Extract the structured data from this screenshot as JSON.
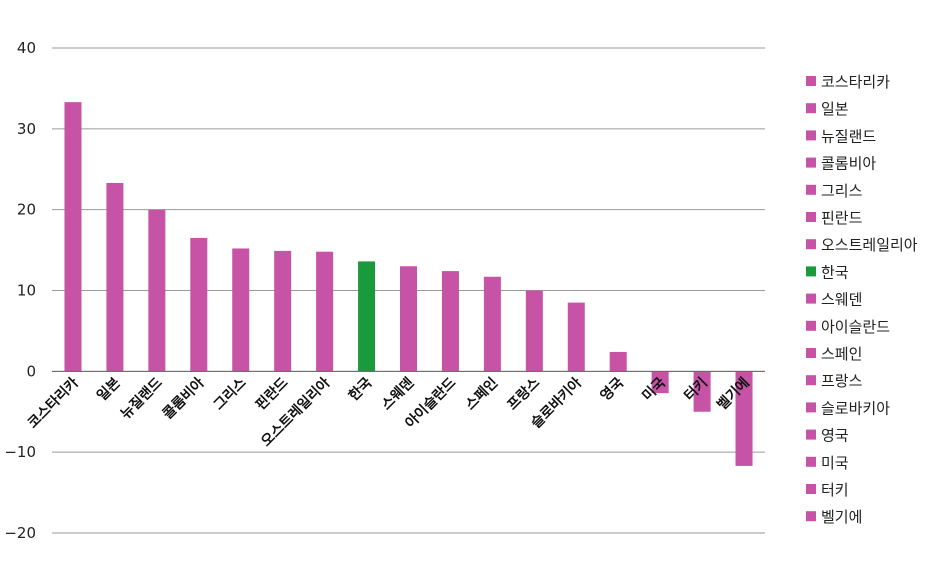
{
  "chart_data": {
    "type": "bar",
    "categories": [
      "코스타리카",
      "일본",
      "뉴질랜드",
      "콜롬비아",
      "그리스",
      "핀란드",
      "오스트레일리아",
      "한국",
      "스웨덴",
      "아이슬란드",
      "스페인",
      "프랑스",
      "슬로바키아",
      "영국",
      "미국",
      "터키",
      "벨기에"
    ],
    "values": [
      33.3,
      23.3,
      20.0,
      16.5,
      15.2,
      14.9,
      14.8,
      13.6,
      13.0,
      12.4,
      11.7,
      10.0,
      8.5,
      2.4,
      -2.7,
      -5.0,
      -11.7
    ],
    "ylim": [
      -20,
      40
    ],
    "yticks": [
      40,
      30,
      20,
      10,
      0,
      -10,
      -20
    ],
    "ytick_labels": [
      "40",
      "30",
      "20",
      "10",
      "0",
      "−10",
      "−20"
    ],
    "grid": true,
    "legend": "right",
    "colors": {
      "default": "#c653a6",
      "highlight": "#1a9a3c",
      "highlight_category": "한국"
    }
  }
}
